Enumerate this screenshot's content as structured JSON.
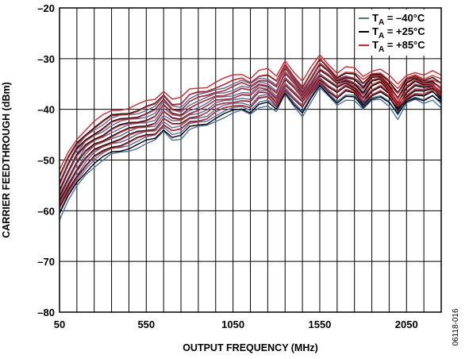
{
  "chart_data": {
    "type": "line",
    "title": "",
    "xlabel": "OUTPUT FREQUENCY (MHz)",
    "ylabel": "CARRIER FEEDTHROUGH (dBm)",
    "xlim": [
      50,
      2250
    ],
    "ylim": [
      -80,
      -20
    ],
    "x_tick_labels": [
      "50",
      "550",
      "1050",
      "1550",
      "2050"
    ],
    "x_tick_values": [
      50,
      550,
      1050,
      1550,
      2050
    ],
    "x_grid_step": 100,
    "y_tick_labels": [
      "–80",
      "–70",
      "–60",
      "–50",
      "–40",
      "–30",
      "–20"
    ],
    "y_tick_values": [
      -80,
      -70,
      -60,
      -50,
      -40,
      -30,
      -20
    ],
    "grid": true,
    "legend_position": "top-right",
    "figure_code": "06118-016",
    "x": [
      50,
      100,
      150,
      200,
      250,
      300,
      350,
      400,
      450,
      500,
      550,
      600,
      650,
      700,
      750,
      800,
      850,
      900,
      950,
      1000,
      1050,
      1100,
      1150,
      1200,
      1250,
      1300,
      1350,
      1400,
      1450,
      1500,
      1550,
      1600,
      1650,
      1700,
      1750,
      1800,
      1850,
      1900,
      1950,
      2000,
      2050,
      2100,
      2150,
      2200,
      2250
    ],
    "series": [
      {
        "name": "–40°C",
        "color": "#4a6fa5",
        "values": [
          -58,
          -54.5,
          -51.5,
          -49,
          -47.5,
          -46.5,
          -45.5,
          -45,
          -44.5,
          -44,
          -43.5,
          -43,
          -41,
          -42.5,
          -42.5,
          -41,
          -40.5,
          -40,
          -39,
          -38.5,
          -38,
          -37.5,
          -38,
          -36.5,
          -36.5,
          -38,
          -34.5,
          -36.5,
          -38.5,
          -36,
          -33.5,
          -35,
          -36.5,
          -35.5,
          -36,
          -38,
          -36,
          -35.5,
          -37,
          -40,
          -37,
          -36,
          -36.5,
          -36,
          -38
        ]
      },
      {
        "name": "+25°C",
        "color": "#000000",
        "values": [
          -57,
          -53.5,
          -50.5,
          -48.5,
          -47,
          -46,
          -45,
          -44.5,
          -44,
          -43.5,
          -43,
          -42.5,
          -40.5,
          -42,
          -42,
          -40.5,
          -40,
          -39.5,
          -38.5,
          -38,
          -37.5,
          -37,
          -37.5,
          -36,
          -36,
          -37.5,
          -34,
          -36,
          -38,
          -35.5,
          -33,
          -34.5,
          -36,
          -35,
          -35.5,
          -37.5,
          -35.5,
          -35,
          -36.5,
          -39,
          -36.5,
          -35.5,
          -36,
          -35.5,
          -37
        ]
      },
      {
        "name": "+85°C",
        "color": "#d9272e",
        "values": [
          -56,
          -52.5,
          -49.5,
          -47.5,
          -46,
          -45,
          -44,
          -43.5,
          -43,
          -42.5,
          -42,
          -41.5,
          -39.5,
          -41,
          -41,
          -39.5,
          -39,
          -38.5,
          -37.5,
          -37,
          -36.5,
          -36,
          -36.5,
          -35,
          -35,
          -36.5,
          -33,
          -35,
          -37,
          -34.5,
          -32,
          -33.5,
          -35,
          -34,
          -34.5,
          -36,
          -34.5,
          -34,
          -35.5,
          -37.5,
          -35.5,
          -34.5,
          -35,
          -34.5,
          -35.5
        ]
      }
    ]
  },
  "legend": {
    "items": [
      {
        "prefix": "T",
        "sub": "A",
        "rest": " = –40°C",
        "color": "#4a6fa5"
      },
      {
        "prefix": "T",
        "sub": "A",
        "rest": " = +25°C",
        "color": "#000000"
      },
      {
        "prefix": "T",
        "sub": "A",
        "rest": " = +85°C",
        "color": "#d9272e"
      }
    ]
  }
}
